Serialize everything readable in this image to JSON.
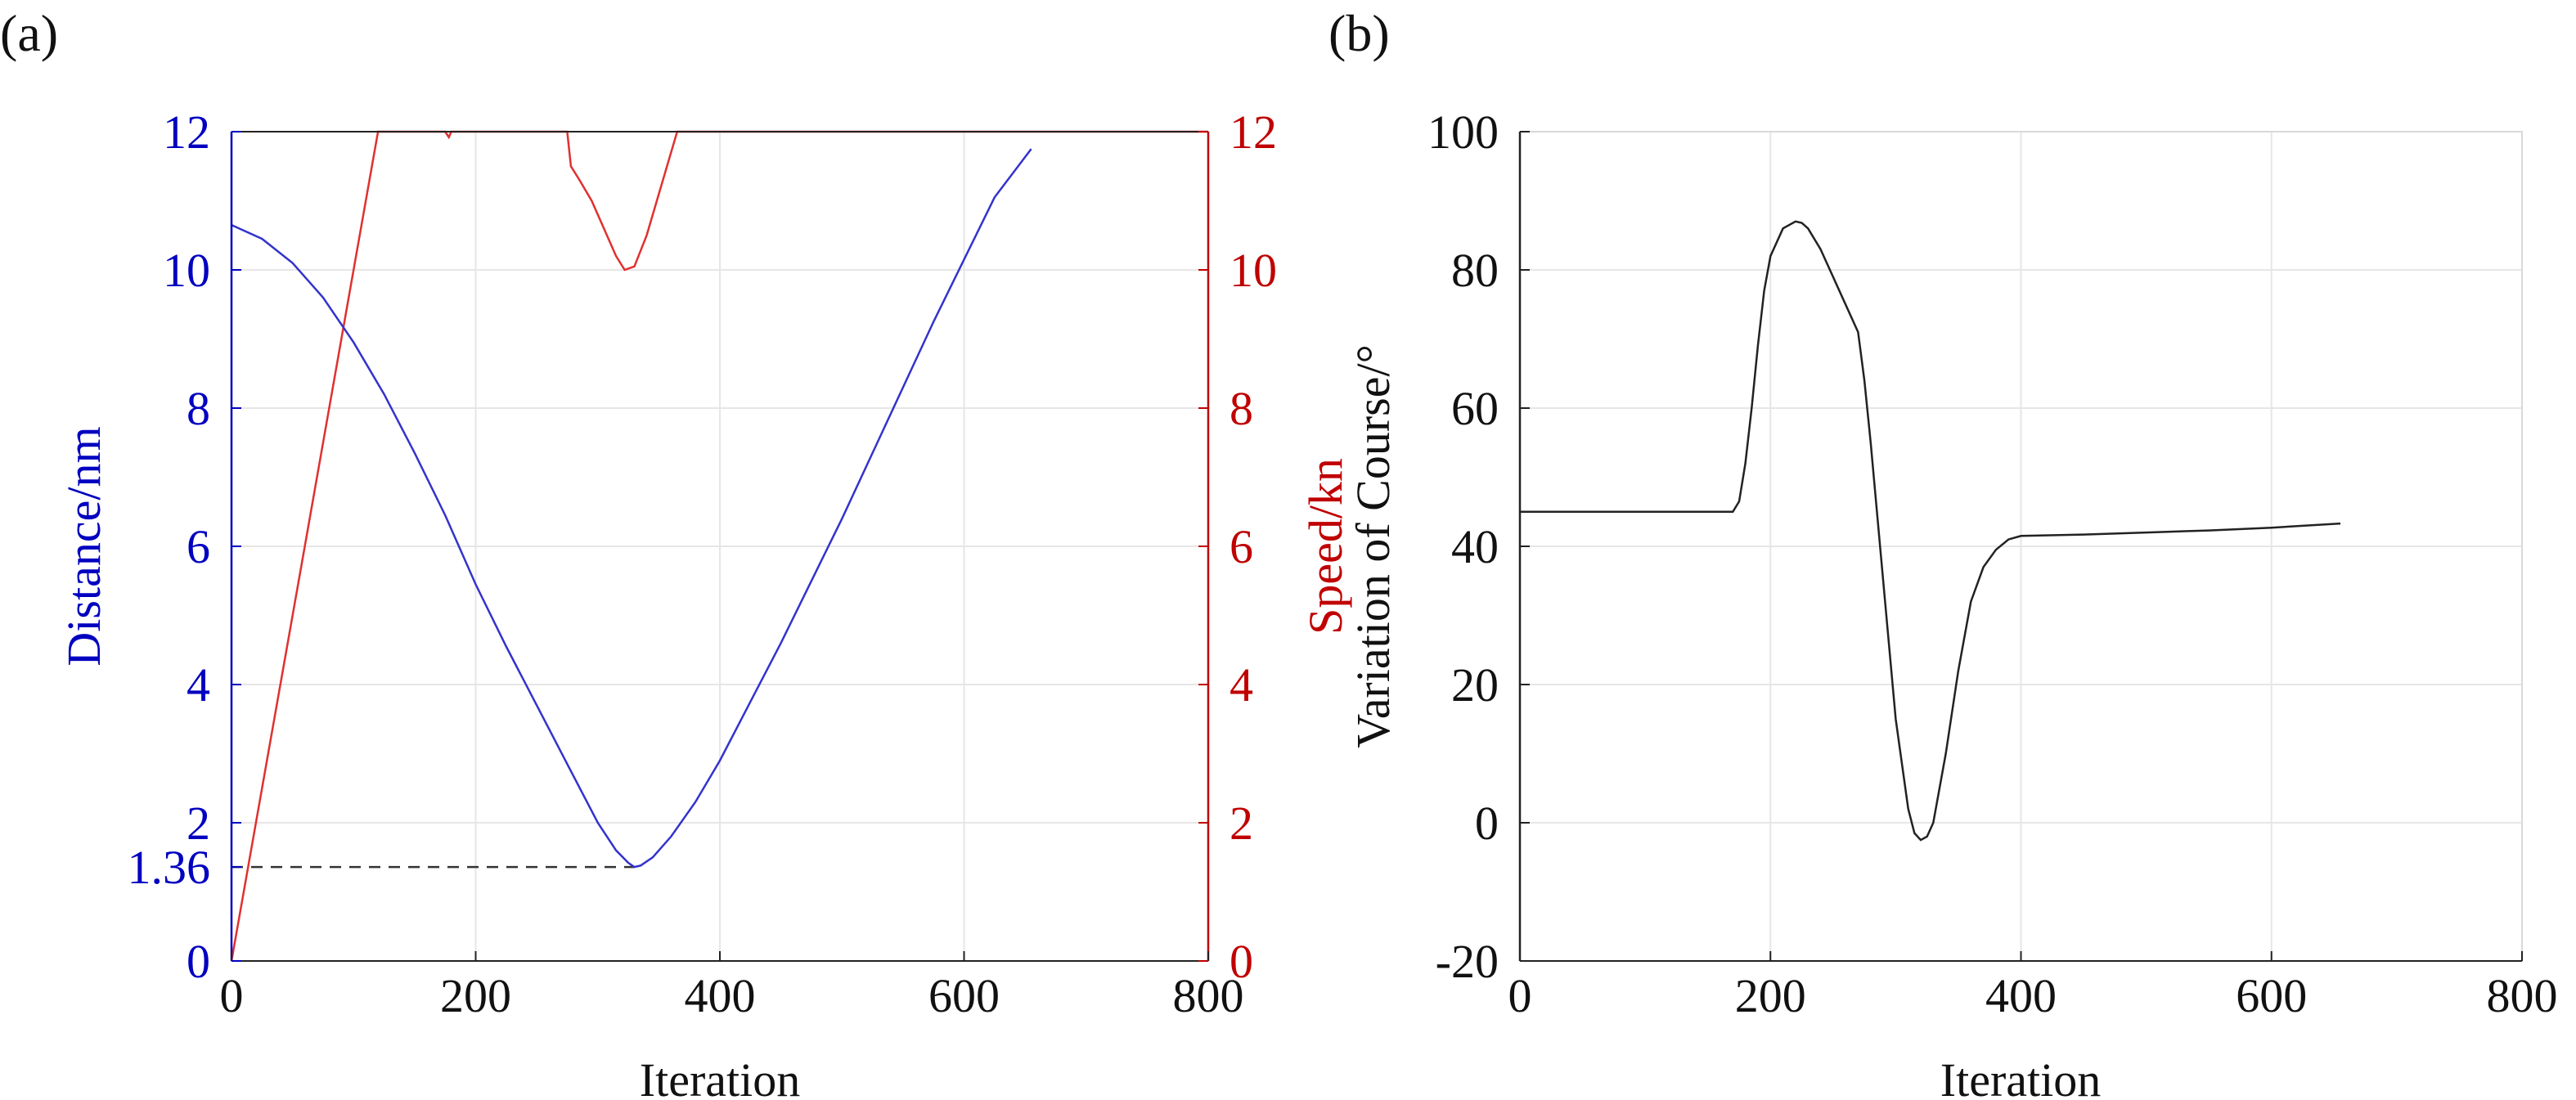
{
  "chart_data": [
    {
      "panel_label": "(a)",
      "type": "line",
      "xlabel": "Iteration",
      "ylabel_left": "Distance/nm",
      "ylabel_right": "Speed/kn",
      "xlim": [
        0,
        800
      ],
      "ylim_left": [
        0,
        12
      ],
      "ylim_right": [
        0,
        12
      ],
      "x_ticks": [
        0,
        200,
        400,
        600,
        800
      ],
      "y_ticks_left": [
        "0",
        "1.36",
        "2",
        "4",
        "6",
        "8",
        "10",
        "12"
      ],
      "y_ticks_right": [
        0,
        2,
        4,
        6,
        8,
        10,
        12
      ],
      "grid": true,
      "colors": {
        "left_axis": "#0000c0",
        "right_axis": "#c00000",
        "distance": "#3333cc",
        "speed": "#e03030",
        "reference": "#333333"
      },
      "series": [
        {
          "axis": "left",
          "style": "solid",
          "x": [
            0,
            25,
            50,
            75,
            100,
            125,
            150,
            175,
            200,
            225,
            250,
            275,
            300,
            315,
            325,
            330,
            335,
            345,
            360,
            380,
            400,
            425,
            450,
            475,
            500,
            525,
            550,
            575,
            600,
            625,
            655
          ],
          "y": [
            10.65,
            10.45,
            10.1,
            9.6,
            8.95,
            8.2,
            7.35,
            6.45,
            5.45,
            4.55,
            3.7,
            2.85,
            2.0,
            1.6,
            1.42,
            1.36,
            1.38,
            1.5,
            1.8,
            2.3,
            2.9,
            3.75,
            4.6,
            5.5,
            6.4,
            7.35,
            8.3,
            9.25,
            10.15,
            11.05,
            11.75
          ]
        },
        {
          "axis": "right",
          "style": "solid",
          "x": [
            0,
            30,
            60,
            90,
            120,
            175,
            178,
            180,
            275,
            278,
            285,
            295,
            305,
            315,
            322,
            330,
            340,
            350,
            365,
            800
          ],
          "y": [
            0,
            3.0,
            6.0,
            9.0,
            12,
            12,
            11.92,
            12,
            12,
            11.5,
            11.3,
            11.0,
            10.6,
            10.2,
            10.0,
            10.05,
            10.5,
            11.1,
            12,
            12
          ]
        },
        {
          "axis": "left",
          "style": "dashed",
          "x": [
            0,
            330
          ],
          "y": [
            1.36,
            1.36
          ]
        }
      ]
    },
    {
      "panel_label": "(b)",
      "type": "line",
      "xlabel": "Iteration",
      "ylabel": "Variation of Course/°",
      "xlim": [
        0,
        800
      ],
      "ylim": [
        -20,
        100
      ],
      "x_ticks": [
        0,
        200,
        400,
        600,
        800
      ],
      "y_ticks": [
        -20,
        0,
        20,
        40,
        60,
        80,
        100
      ],
      "grid": true,
      "colors": {
        "line": "#222222",
        "axis": "#222222"
      },
      "series": [
        {
          "x": [
            0,
            100,
            170,
            175,
            180,
            185,
            190,
            195,
            200,
            210,
            220,
            225,
            230,
            240,
            250,
            260,
            270,
            275,
            280,
            290,
            300,
            310,
            315,
            320,
            325,
            330,
            340,
            350,
            360,
            370,
            380,
            390,
            400,
            450,
            500,
            550,
            600,
            655
          ],
          "y": [
            45,
            45,
            45,
            46.5,
            52,
            60,
            69,
            77,
            82,
            86,
            87,
            86.8,
            86,
            83,
            79,
            75,
            71,
            64,
            55,
            35,
            15,
            2,
            -1.5,
            -2.5,
            -2,
            0,
            10,
            22,
            32,
            37,
            39.5,
            41,
            41.5,
            41.7,
            42,
            42.3,
            42.7,
            43.3
          ]
        }
      ]
    }
  ]
}
